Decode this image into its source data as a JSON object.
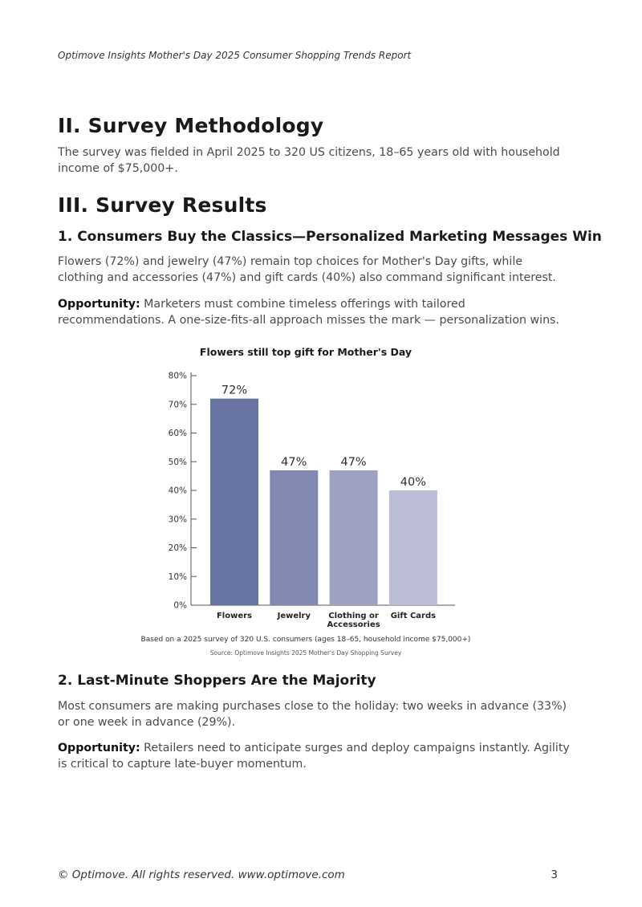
{
  "header": {
    "text": "Optimove Insights Mother's Day 2025 Consumer Shopping Trends Report"
  },
  "sections": {
    "methodology": {
      "heading": "II. Survey Methodology",
      "text": "The survey was fielded in April 2025 to 320 US citizens, 18–65 years old with household income of $75,000+."
    },
    "results": {
      "heading": "III. Survey Results",
      "sub1": {
        "heading": "1. Consumers Buy the Classics—Personalized Marketing Messages Win",
        "text": "Flowers (72%) and jewelry (47%) remain top choices for Mother's Day gifts, while clothing and accessories (47%) and gift cards (40%) also command significant interest.",
        "opportunity_label": "Opportunity:",
        "opportunity_text": " Marketers must combine timeless offerings with tailored recommendations. A one-size-fits-all approach misses the mark — personalization wins."
      },
      "sub2": {
        "heading": "2. Last-Minute Shoppers Are the Majority",
        "text": "Most consumers are making purchases close to the holiday: two weeks in advance (33%) or one week in advance (29%).",
        "opportunity_label": "Opportunity:",
        "opportunity_text": " Retailers need to anticipate surges and deploy campaigns instantly. Agility is critical to capture late-buyer momentum."
      }
    }
  },
  "chart_data": {
    "type": "bar",
    "title": "Flowers still top gift for Mother's Day",
    "categories": [
      "Flowers",
      "Jewelry",
      "Clothing or Accessories",
      "Gift Cards"
    ],
    "category_lines": [
      [
        "Flowers"
      ],
      [
        "Jewelry"
      ],
      [
        "Clothing or",
        "Accessories"
      ],
      [
        "Gift Cards"
      ]
    ],
    "values": [
      72,
      47,
      47,
      40
    ],
    "data_labels": [
      "72%",
      "47%",
      "47%",
      "40%"
    ],
    "colors": [
      "#6875a3",
      "#8289b1",
      "#9ea2c2",
      "#bbbcd6"
    ],
    "ylim": [
      0,
      80
    ],
    "yticks": [
      "0%",
      "10%",
      "20%",
      "30%",
      "40%",
      "50%",
      "60%",
      "70%",
      "80%"
    ],
    "grid": false,
    "note": "Based on a 2025 survey of 320 U.S. consumers (ages 18–65, household income $75,000+)",
    "source": "Source: Optimove Insights 2025 Mother's Day Shopping Survey"
  },
  "footer": {
    "text": "© Optimove. All rights reserved. www.optimove.com",
    "page_number": "3"
  }
}
